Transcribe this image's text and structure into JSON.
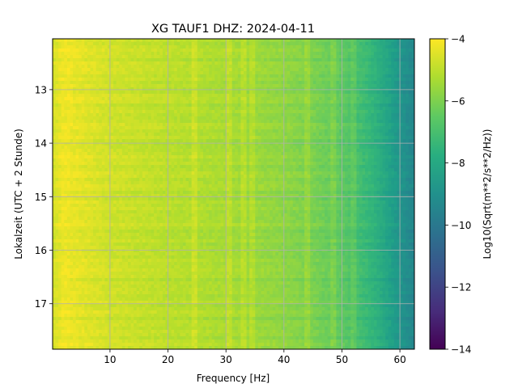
{
  "chart_data": {
    "type": "heatmap",
    "title": "XG TAUF1  DHZ: 2024-04-11",
    "xlabel": "Frequency [Hz]",
    "ylabel": "Lokalzeit (UTC + 2 Stunde)",
    "xlim": [
      0.1,
      62.5
    ],
    "ylim": [
      12.05,
      17.85
    ],
    "y_inverted": true,
    "grid": true,
    "xticks": [
      10,
      20,
      30,
      40,
      50,
      60
    ],
    "xtick_labels": [
      "10",
      "20",
      "30",
      "40",
      "50",
      "60"
    ],
    "yticks": [
      13,
      14,
      15,
      16,
      17
    ],
    "ytick_labels": [
      "13",
      "14",
      "15",
      "16",
      "17"
    ],
    "colormap": "viridis",
    "colorbar": {
      "label": "Log10(Sqrt(m**2/s**2/Hz))",
      "range": [
        -14,
        -4
      ],
      "ticks": [
        -4,
        -6,
        -8,
        -10,
        -12,
        -14
      ],
      "tick_labels": [
        "−4",
        "−6",
        "−8",
        "−10",
        "−12",
        "−14"
      ]
    },
    "spectral_profile": {
      "frequency_hz": [
        0,
        2,
        5,
        10,
        20,
        30,
        40,
        45,
        50,
        55,
        58,
        60,
        62.5
      ],
      "log10_amplitude": [
        -4.7,
        -4.2,
        -4.4,
        -4.7,
        -5.0,
        -5.3,
        -5.7,
        -6.0,
        -6.5,
        -7.4,
        -8.2,
        -8.8,
        -9.4
      ]
    },
    "narrowband_lines_hz": [
      24.7,
      30.7,
      33.2,
      34.5,
      44.0,
      48.5,
      52.0
    ]
  }
}
